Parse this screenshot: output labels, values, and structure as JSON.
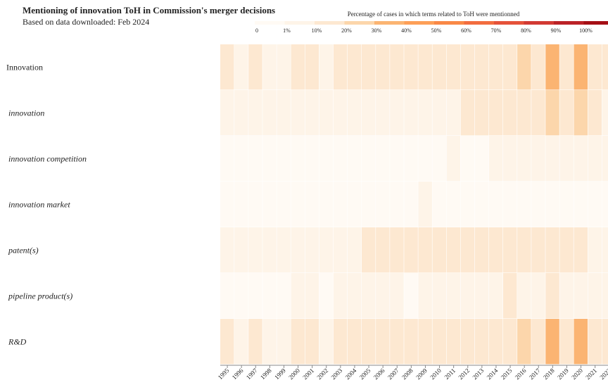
{
  "chart_data": {
    "type": "heatmap",
    "title": "Mentioning of innovation ToH in Commission's merger decisions",
    "subtitle": "Based on data downloaded: Feb 2024",
    "legend_title": "Percentage of cases in which terms related to ToH were mentionned",
    "legend_ticks": [
      0,
      {
        "value": 1,
        "label": "1%"
      },
      {
        "value": 10,
        "label": "10%"
      },
      {
        "value": 20,
        "label": "20%"
      },
      {
        "value": 30,
        "label": "30%"
      },
      {
        "value": 40,
        "label": "40%"
      },
      {
        "value": 50,
        "label": "50%"
      },
      {
        "value": 60,
        "label": "60%"
      },
      {
        "value": 70,
        "label": "70%"
      },
      {
        "value": 80,
        "label": "80%"
      },
      {
        "value": 90,
        "label": "90%"
      },
      {
        "value": 100,
        "label": "100%"
      }
    ],
    "colors": [
      "#fffaf4",
      "#fef4e8",
      "#fde8d1",
      "#fcd6ab",
      "#fbb472",
      "#fd9f58",
      "#f98846",
      "#f26d3f",
      "#e5523a",
      "#d23a33",
      "#bb2227",
      "#a50f15"
    ],
    "x": [
      1995,
      1996,
      1997,
      1998,
      1999,
      2000,
      2001,
      2002,
      2003,
      2004,
      2005,
      2006,
      2007,
      2008,
      2009,
      2010,
      2011,
      2012,
      2013,
      2014,
      2015,
      2016,
      2017,
      2018,
      2019,
      2020,
      2021,
      2022
    ],
    "categories": [
      "Innovation",
      "innovation",
      "innovation competition",
      "innovation market",
      "patent(s)",
      "pipeline product(s)",
      "R&D"
    ],
    "values": [
      [
        12,
        5,
        12,
        5,
        5,
        12,
        12,
        5,
        12,
        12,
        12,
        15,
        12,
        12,
        15,
        12,
        12,
        15,
        12,
        15,
        15,
        25,
        15,
        35,
        15,
        35,
        15,
        12
      ],
      [
        5,
        5,
        5,
        5,
        5,
        5,
        5,
        5,
        5,
        5,
        5,
        5,
        5,
        5,
        5,
        5,
        5,
        12,
        12,
        12,
        12,
        15,
        12,
        25,
        12,
        25,
        12,
        5
      ],
      [
        0,
        0,
        0,
        0,
        0,
        0,
        0,
        0,
        0,
        0,
        0,
        0,
        0,
        0,
        0,
        0,
        5,
        0,
        0,
        5,
        5,
        5,
        5,
        5,
        5,
        5,
        5,
        5
      ],
      [
        0,
        0,
        0,
        0,
        0,
        0,
        0,
        0,
        0,
        0,
        0,
        0,
        0,
        0,
        5,
        0,
        0,
        0,
        0,
        0,
        0,
        0,
        0,
        0,
        0,
        0,
        0,
        0
      ],
      [
        5,
        5,
        5,
        5,
        5,
        5,
        5,
        5,
        5,
        5,
        12,
        12,
        12,
        12,
        12,
        12,
        12,
        12,
        12,
        12,
        12,
        12,
        12,
        15,
        12,
        12,
        5,
        5
      ],
      [
        0,
        0,
        0,
        0,
        0,
        5,
        5,
        0,
        5,
        5,
        5,
        5,
        5,
        0,
        5,
        5,
        5,
        5,
        5,
        5,
        12,
        5,
        5,
        12,
        5,
        5,
        5,
        5
      ],
      [
        12,
        5,
        12,
        5,
        5,
        12,
        12,
        5,
        12,
        12,
        12,
        15,
        12,
        12,
        15,
        12,
        12,
        15,
        12,
        15,
        15,
        25,
        15,
        35,
        15,
        35,
        15,
        12
      ]
    ]
  }
}
